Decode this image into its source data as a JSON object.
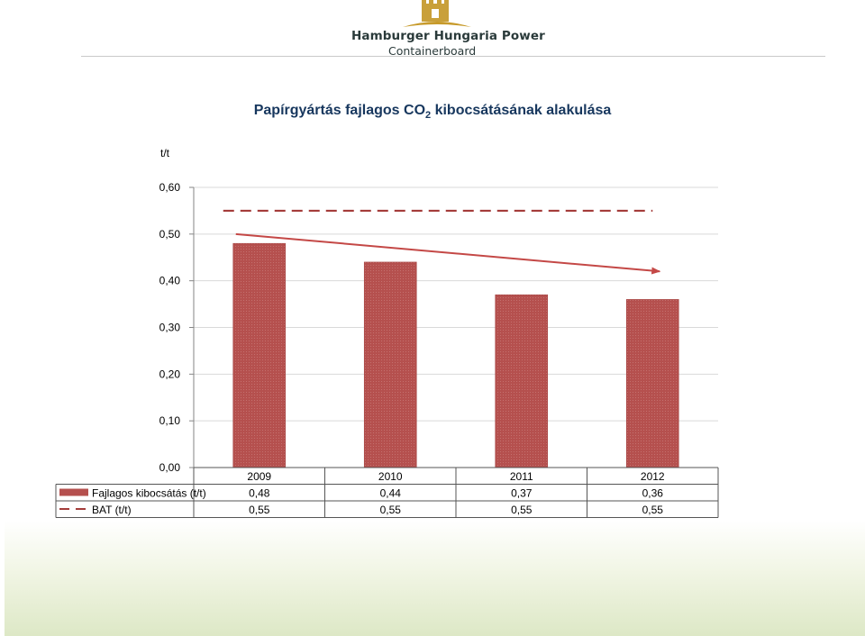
{
  "header": {
    "company_line1": "Hamburger Hungaria Power",
    "company_line2": "Containerboard"
  },
  "chart_data": {
    "type": "bar",
    "title_main": "Papírgyártás fajlagos CO",
    "title_sub": "2",
    "title_end": " kibocsátásának alakulása",
    "ylabel": "t/t",
    "ylim": [
      0,
      0.6
    ],
    "y_ticks": [
      "0,00",
      "0,10",
      "0,20",
      "0,30",
      "0,40",
      "0,50",
      "0,60"
    ],
    "categories": [
      "2009",
      "2010",
      "2011",
      "2012"
    ],
    "series": [
      {
        "name": "Fajlagos kibocsátás (t/t)",
        "kind": "bar",
        "color": "#b5504e",
        "values": [
          0.48,
          0.44,
          0.37,
          0.36
        ],
        "labels": [
          "0,48",
          "0,44",
          "0,37",
          "0,36"
        ]
      },
      {
        "name": "BAT (t/t)",
        "kind": "dashed-line",
        "color": "#a43c3a",
        "values": [
          0.55,
          0.55,
          0.55,
          0.55
        ],
        "labels": [
          "0,55",
          "0,55",
          "0,55",
          "0,55"
        ]
      }
    ],
    "trend_arrow": {
      "from_value": 0.5,
      "to_value": 0.42,
      "color": "#c44846"
    },
    "grid": true,
    "legend": "data-table-below"
  }
}
